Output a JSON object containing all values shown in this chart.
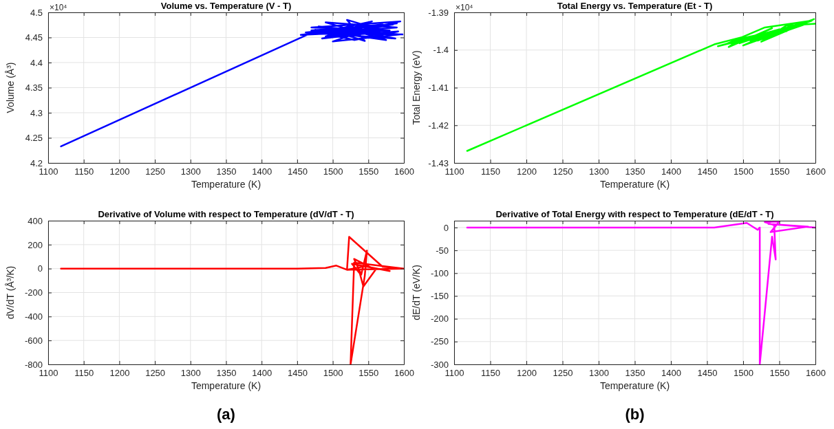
{
  "chart_data": [
    {
      "type": "line",
      "title": "Volume vs. Temperature (V - T)",
      "xlabel": "Temperature (K)",
      "ylabel": "Volume (Å³)",
      "annotations": [
        "×10⁴"
      ],
      "grid": true,
      "xlim": [
        1100,
        1600
      ],
      "xticks": [
        1100,
        1150,
        1200,
        1250,
        1300,
        1350,
        1400,
        1450,
        1500,
        1550,
        1600
      ],
      "ylim": [
        4.2,
        4.5
      ],
      "yticks": [
        4.2,
        4.25,
        4.3,
        4.35,
        4.4,
        4.45,
        4.5
      ],
      "series": [
        {
          "color": "#0000ff",
          "x": [
            1118,
            1465,
            1500,
            1590,
            1455,
            1580,
            1470,
            1595,
            1485,
            1560,
            1460,
            1590,
            1490,
            1575,
            1475,
            1585,
            1520,
            1545,
            1480,
            1595,
            1500,
            1570,
            1462,
            1588,
            1510,
            1555,
            1490,
            1592,
            1530,
            1470,
            1585,
            1515,
            1598
          ],
          "values": [
            4.233,
            4.456,
            4.462,
            4.478,
            4.455,
            4.464,
            4.47,
            4.482,
            4.448,
            4.46,
            4.456,
            4.47,
            4.48,
            4.445,
            4.465,
            4.458,
            4.485,
            4.443,
            4.472,
            4.456,
            4.442,
            4.476,
            4.46,
            4.448,
            4.468,
            4.482,
            4.452,
            4.462,
            4.445,
            4.464,
            4.476,
            4.458,
            4.456
          ]
        }
      ]
    },
    {
      "type": "line",
      "title": "Total Energy vs. Temperature (Et - T)",
      "xlabel": "Temperature (K)",
      "ylabel": "Total Energy (eV)",
      "annotations": [
        "×10⁴"
      ],
      "grid": true,
      "xlim": [
        1100,
        1600
      ],
      "xticks": [
        1100,
        1150,
        1200,
        1250,
        1300,
        1350,
        1400,
        1450,
        1500,
        1550,
        1600
      ],
      "ylim": [
        -1.43,
        -1.39
      ],
      "yticks": [
        -1.43,
        -1.42,
        -1.41,
        -1.4,
        -1.39
      ],
      "series": [
        {
          "color": "#00ff00",
          "x": [
            1118,
            1460,
            1500,
            1480,
            1540,
            1495,
            1580,
            1510,
            1560,
            1475,
            1530,
            1595,
            1500,
            1550,
            1465,
            1585,
            1520,
            1570,
            1490,
            1545,
            1598,
            1525,
            1560,
            1600
          ],
          "values": [
            -1.4268,
            -1.3985,
            -1.3965,
            -1.3992,
            -1.3942,
            -1.3982,
            -1.3928,
            -1.3975,
            -1.395,
            -1.3985,
            -1.394,
            -1.3922,
            -1.3988,
            -1.3945,
            -1.399,
            -1.3932,
            -1.3975,
            -1.394,
            -1.3972,
            -1.3955,
            -1.3918,
            -1.3978,
            -1.3935,
            -1.393
          ]
        }
      ]
    },
    {
      "type": "line",
      "title": "Derivative of Volume with respect to Temperature (dV/dT - T)",
      "xlabel": "Temperature (K)",
      "ylabel": "dV/dT (Å³/K)",
      "annotations": [
        "(a)"
      ],
      "grid": true,
      "xlim": [
        1100,
        1600
      ],
      "xticks": [
        1100,
        1150,
        1200,
        1250,
        1300,
        1350,
        1400,
        1450,
        1500,
        1550,
        1600
      ],
      "ylim": [
        -800,
        400
      ],
      "yticks": [
        -800,
        -600,
        -400,
        -200,
        0,
        200,
        400
      ],
      "series": [
        {
          "color": "#ff0000",
          "x": [
            1118,
            1450,
            1490,
            1505,
            1520,
            1523,
            1570,
            1600,
            1530,
            1525,
            1545,
            1548,
            1540,
            1530,
            1560,
            1543,
            1538,
            1527,
            1580,
            1545,
            1520,
            1600
          ],
          "values": [
            0,
            0,
            5,
            25,
            -10,
            265,
            15,
            0,
            50,
            -800,
            -60,
            150,
            -50,
            80,
            -10,
            -150,
            -40,
            40,
            -20,
            20,
            -10,
            0
          ]
        }
      ]
    },
    {
      "type": "line",
      "title": "Derivative of Total Energy with respect to Temperature (dE/dT - T)",
      "xlabel": "Temperature (K)",
      "ylabel": "dE/dT (eV/K)",
      "annotations": [
        "(b)"
      ],
      "grid": true,
      "xlim": [
        1100,
        1600
      ],
      "xticks": [
        1100,
        1150,
        1200,
        1250,
        1300,
        1350,
        1400,
        1450,
        1500,
        1550,
        1600
      ],
      "ylim": [
        -300,
        15
      ],
      "yticks": [
        -300,
        -250,
        -200,
        -150,
        -100,
        -50,
        0
      ],
      "series": [
        {
          "color": "#ff00ff",
          "x": [
            1118,
            1460,
            1505,
            1520,
            1523,
            1523,
            1540,
            1545,
            1543,
            1530,
            1550,
            1538,
            1590,
            1535,
            1600
          ],
          "values": [
            0,
            0,
            10,
            -5,
            0,
            -300,
            -20,
            -70,
            5,
            12,
            13,
            -10,
            2,
            8,
            0
          ]
        }
      ]
    }
  ]
}
